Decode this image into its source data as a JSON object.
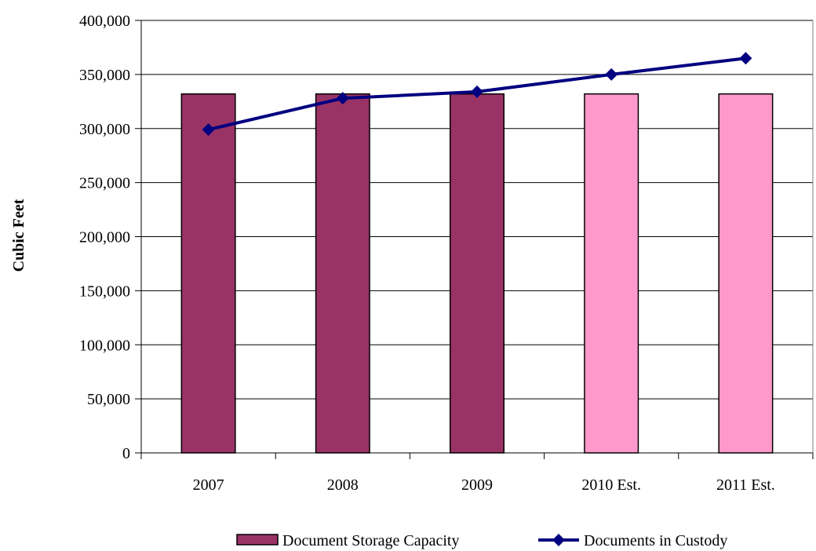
{
  "chart_data": {
    "type": "bar",
    "title": "",
    "xlabel": "",
    "ylabel": "Cubic Feet",
    "ylim": [
      0,
      400000
    ],
    "ytick_step": 50000,
    "yticks": [
      "0",
      "50,000",
      "100,000",
      "150,000",
      "200,000",
      "250,000",
      "300,000",
      "350,000",
      "400,000"
    ],
    "categories": [
      "2007",
      "2008",
      "2009",
      "2010 Est.",
      "2011 Est."
    ],
    "grid": true,
    "legend_position": "bottom",
    "series": [
      {
        "name": "Document Storage Capacity",
        "type": "bar",
        "values": [
          332000,
          332000,
          332000,
          332000,
          332000
        ],
        "colors": [
          "#993366",
          "#993366",
          "#993366",
          "#FF99CC",
          "#FF99CC"
        ]
      },
      {
        "name": "Documents in Custody",
        "type": "line",
        "marker": "diamond",
        "color": "#000080",
        "values": [
          299000,
          328000,
          334000,
          350000,
          365000
        ]
      }
    ]
  }
}
